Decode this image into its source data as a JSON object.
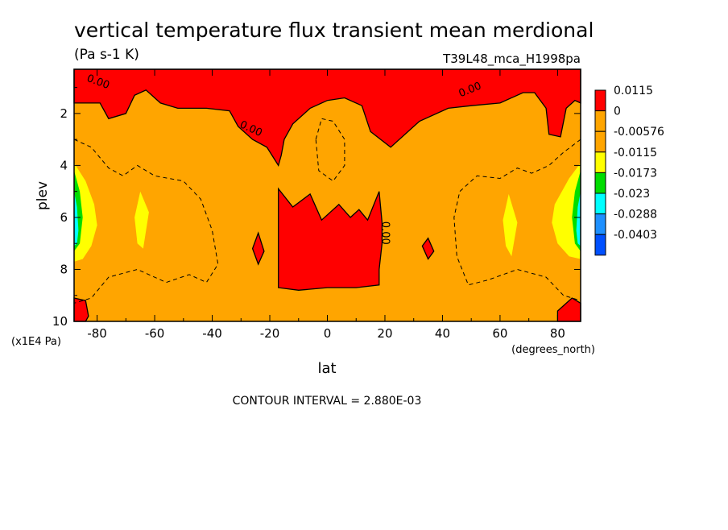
{
  "chart_data": {
    "type": "contour",
    "title": "vertical temperature flux transient mean merdional",
    "subtitle": "(Pa s-1 K)",
    "dataset_label": "T39L48_mca_H1998pa",
    "xlabel": "lat",
    "x_units": "(degrees_north)",
    "ylabel": "plev",
    "y_units": "(x1E4 Pa)",
    "xlim": [
      -88,
      88
    ],
    "ylim": [
      0.3,
      10
    ],
    "y_inverted": true,
    "x_ticks": [
      -80,
      -60,
      -40,
      -20,
      0,
      20,
      40,
      60,
      80
    ],
    "x_tick_labels": [
      "-80",
      "-60",
      "-40",
      "-20",
      "0",
      "20",
      "40",
      "60",
      "80"
    ],
    "y_ticks": [
      2,
      4,
      6,
      8,
      10
    ],
    "y_tick_labels": [
      "2",
      "4",
      "6",
      "8",
      "10"
    ],
    "contour_interval_text": "CONTOUR INTERVAL = 2.880E-03",
    "contour_line_labels": [
      "0.00",
      "0.00",
      "0.00",
      "0.00"
    ],
    "legend": {
      "placement": "right",
      "levels": [
        {
          "label": "0.0115",
          "color": "#ff0000"
        },
        {
          "label": "0",
          "color": "#ffa500"
        },
        {
          "label": "-0.00576",
          "color": "#ffa500"
        },
        {
          "label": "-0.0115",
          "color": "#ffff00"
        },
        {
          "label": "-0.0173",
          "color": "#00dd00"
        },
        {
          "label": "-0.023",
          "color": "#00ffff"
        },
        {
          "label": "-0.0288",
          "color": "#1e90ff"
        },
        {
          "label": "-0.0403",
          "color": "#0050ff"
        }
      ]
    },
    "fill_colors": {
      "positive": "#ff0000",
      "near_zero": "#ffa500",
      "moderate_negative": "#ffff00",
      "strong_negative": "#00dd00",
      "very_negative": "#00ffff",
      "extreme_negative": "#1e90ff"
    },
    "regions": [
      {
        "level": "positive",
        "points": [
          [
            -88,
            0.3
          ],
          [
            88,
            0.3
          ],
          [
            88,
            1.6
          ],
          [
            86,
            1.5
          ],
          [
            83,
            1.8
          ],
          [
            81,
            2.9
          ],
          [
            77,
            2.8
          ],
          [
            76,
            1.8
          ],
          [
            72,
            1.2
          ],
          [
            68,
            1.2
          ],
          [
            60,
            1.6
          ],
          [
            50,
            1.7
          ],
          [
            42,
            1.8
          ],
          [
            32,
            2.3
          ],
          [
            22,
            3.3
          ],
          [
            15,
            2.7
          ],
          [
            12,
            1.7
          ],
          [
            6,
            1.4
          ],
          [
            0,
            1.5
          ],
          [
            -6,
            1.8
          ],
          [
            -12,
            2.4
          ],
          [
            -15,
            3.0
          ],
          [
            -16,
            3.6
          ],
          [
            -17,
            4.0
          ],
          [
            -21,
            3.3
          ],
          [
            -26,
            3.0
          ],
          [
            -31,
            2.5
          ],
          [
            -34,
            1.9
          ],
          [
            -42,
            1.8
          ],
          [
            -52,
            1.8
          ],
          [
            -58,
            1.6
          ],
          [
            -63,
            1.1
          ],
          [
            -67,
            1.3
          ],
          [
            -70,
            2.0
          ],
          [
            -76,
            2.2
          ],
          [
            -79,
            1.6
          ],
          [
            -84,
            1.6
          ],
          [
            -88,
            1.6
          ]
        ]
      },
      {
        "level": "positive",
        "points": [
          [
            -17,
            4.9
          ],
          [
            -12,
            5.6
          ],
          [
            -6,
            5.1
          ],
          [
            -2,
            6.1
          ],
          [
            4,
            5.5
          ],
          [
            8,
            6.0
          ],
          [
            11,
            5.7
          ],
          [
            14,
            6.1
          ],
          [
            18,
            5.0
          ],
          [
            19,
            6.2
          ],
          [
            19,
            7.0
          ],
          [
            18,
            8.0
          ],
          [
            18,
            8.6
          ],
          [
            10,
            8.7
          ],
          [
            0,
            8.7
          ],
          [
            -10,
            8.8
          ],
          [
            -17,
            8.7
          ]
        ]
      },
      {
        "level": "positive",
        "points": [
          [
            -26,
            7.2
          ],
          [
            -24,
            6.6
          ],
          [
            -22,
            7.3
          ],
          [
            -24,
            7.8
          ]
        ]
      },
      {
        "level": "positive",
        "points": [
          [
            33,
            7.1
          ],
          [
            35,
            6.8
          ],
          [
            37,
            7.3
          ],
          [
            35,
            7.6
          ]
        ]
      },
      {
        "level": "positive",
        "points": [
          [
            -88,
            9.1
          ],
          [
            -84,
            9.2
          ],
          [
            -83,
            9.8
          ],
          [
            -84,
            10
          ],
          [
            -88,
            10
          ]
        ]
      },
      {
        "level": "positive",
        "points": [
          [
            80,
            9.6
          ],
          [
            85,
            9.1
          ],
          [
            88,
            9.3
          ],
          [
            88,
            10
          ],
          [
            80,
            10
          ]
        ]
      },
      {
        "level": "moderate_negative",
        "points": [
          [
            -88,
            3.9
          ],
          [
            -84,
            4.6
          ],
          [
            -81,
            5.5
          ],
          [
            -80,
            6.3
          ],
          [
            -82,
            7.1
          ],
          [
            -85,
            7.6
          ],
          [
            -88,
            7.7
          ]
        ]
      },
      {
        "level": "moderate_negative",
        "points": [
          [
            -67,
            6.0
          ],
          [
            -65,
            5.0
          ],
          [
            -62,
            5.8
          ],
          [
            -64,
            7.2
          ],
          [
            -66,
            7.0
          ]
        ]
      },
      {
        "level": "moderate_negative",
        "points": [
          [
            61,
            6.1
          ],
          [
            63,
            5.1
          ],
          [
            66,
            6.2
          ],
          [
            64,
            7.5
          ],
          [
            62,
            7.1
          ]
        ]
      },
      {
        "level": "moderate_negative",
        "points": [
          [
            88,
            3.9
          ],
          [
            84,
            4.5
          ],
          [
            79,
            5.5
          ],
          [
            78,
            6.2
          ],
          [
            80,
            7.0
          ],
          [
            84,
            7.5
          ],
          [
            88,
            7.6
          ]
        ]
      },
      {
        "level": "strong_negative",
        "points": [
          [
            -88,
            4.2
          ],
          [
            -86,
            5.0
          ],
          [
            -85,
            6.0
          ],
          [
            -86,
            7.0
          ],
          [
            -88,
            7.3
          ]
        ]
      },
      {
        "level": "strong_negative",
        "points": [
          [
            88,
            4.2
          ],
          [
            86,
            5.0
          ],
          [
            85,
            6.0
          ],
          [
            86,
            7.0
          ],
          [
            88,
            7.3
          ]
        ]
      },
      {
        "level": "very_negative",
        "points": [
          [
            -88,
            5.0
          ],
          [
            -87,
            5.6
          ],
          [
            -86.5,
            6.5
          ],
          [
            -87,
            7.0
          ],
          [
            -88,
            7.1
          ]
        ]
      },
      {
        "level": "very_negative",
        "points": [
          [
            88,
            5.0
          ],
          [
            87,
            5.6
          ],
          [
            86.5,
            6.5
          ],
          [
            87,
            7.0
          ],
          [
            88,
            7.1
          ]
        ]
      }
    ],
    "dashed_contours": [
      {
        "closed": false,
        "points": [
          [
            -88,
            3.0
          ],
          [
            -82,
            3.3
          ],
          [
            -76,
            4.1
          ],
          [
            -71,
            4.4
          ],
          [
            -66,
            4.0
          ],
          [
            -60,
            4.4
          ],
          [
            -50,
            4.6
          ],
          [
            -44,
            5.3
          ],
          [
            -40,
            6.5
          ],
          [
            -38,
            7.8
          ],
          [
            -42,
            8.5
          ],
          [
            -48,
            8.2
          ],
          [
            -56,
            8.5
          ],
          [
            -66,
            8.0
          ],
          [
            -76,
            8.3
          ],
          [
            -82,
            9.1
          ],
          [
            -88,
            9.3
          ]
        ]
      },
      {
        "closed": false,
        "points": [
          [
            88,
            3.0
          ],
          [
            82,
            3.5
          ],
          [
            77,
            4.0
          ],
          [
            71,
            4.3
          ],
          [
            66,
            4.1
          ],
          [
            60,
            4.5
          ],
          [
            52,
            4.4
          ],
          [
            46,
            5.0
          ],
          [
            44,
            6.0
          ],
          [
            45,
            7.5
          ],
          [
            49,
            8.6
          ],
          [
            56,
            8.4
          ],
          [
            66,
            8.0
          ],
          [
            76,
            8.3
          ],
          [
            82,
            9.0
          ],
          [
            88,
            9.2
          ]
        ]
      },
      {
        "closed": true,
        "points": [
          [
            -4,
            3.0
          ],
          [
            -2,
            2.2
          ],
          [
            2,
            2.3
          ],
          [
            6,
            3.0
          ],
          [
            6,
            4.0
          ],
          [
            2,
            4.6
          ],
          [
            -3,
            4.2
          ]
        ]
      }
    ],
    "zero_line_labels": [
      {
        "text": "0.00",
        "lat": -80,
        "plev": 0.9,
        "angle": 20
      },
      {
        "text": "0.00",
        "lat": -27,
        "plev": 2.7,
        "angle": 25
      },
      {
        "text": "0.00",
        "lat": 50,
        "plev": 1.2,
        "angle": -22
      },
      {
        "text": "0.00",
        "lat": 19,
        "plev": 6.6,
        "angle": 90
      }
    ]
  }
}
